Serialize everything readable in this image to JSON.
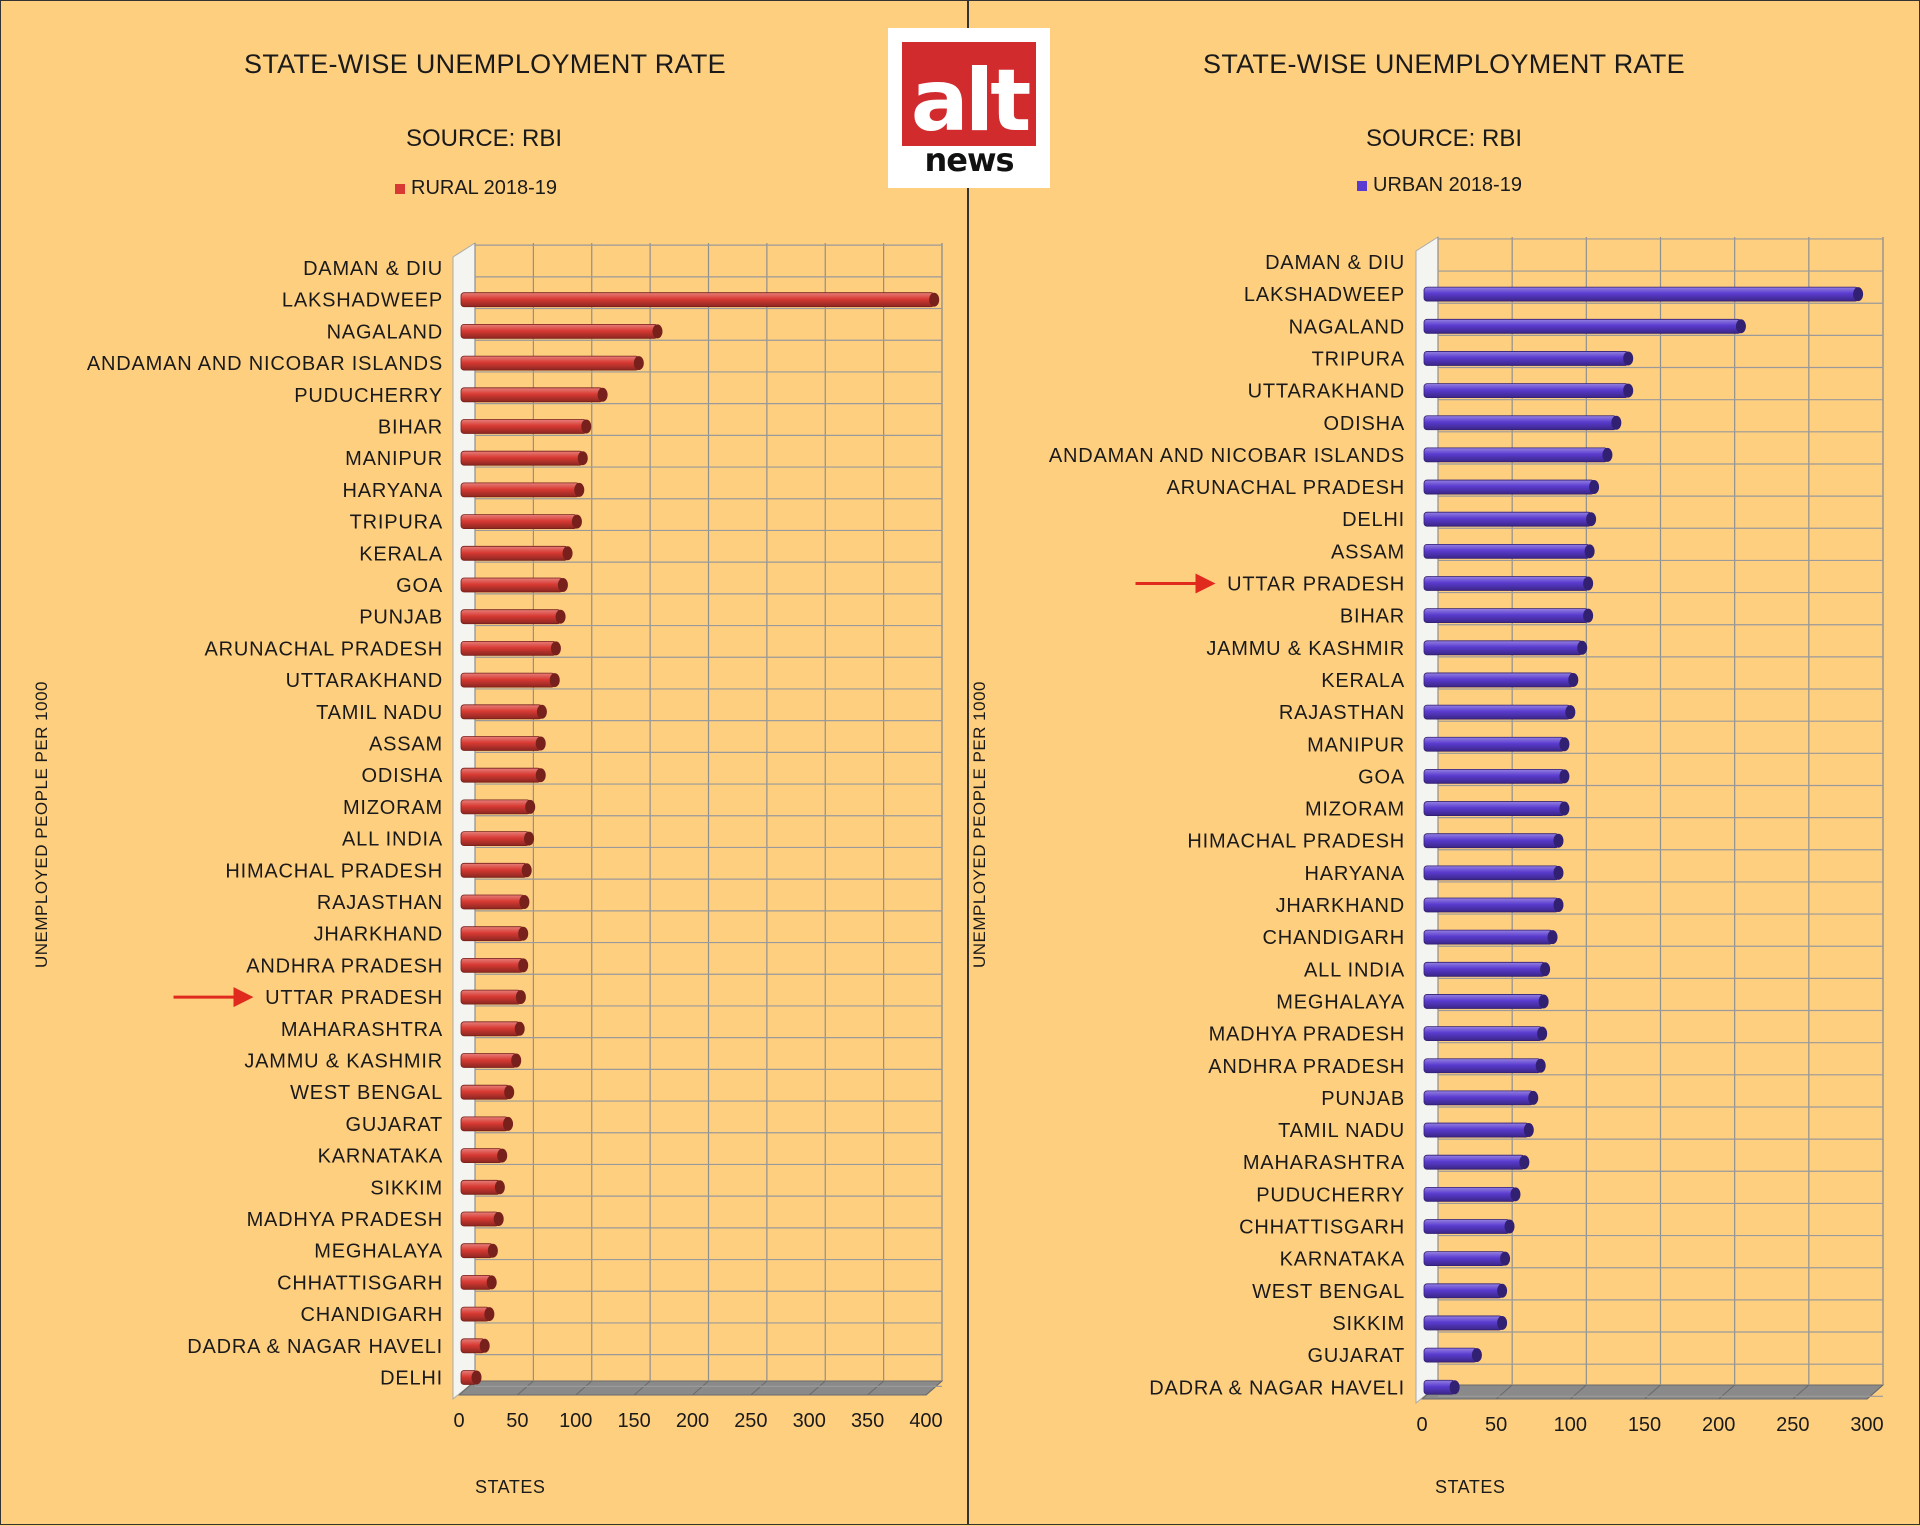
{
  "logo": {
    "top": "alt",
    "bottom": "news"
  },
  "left": {
    "title": "STATE-WISE UNEMPLOYMENT RATE",
    "subtitle": "SOURCE: RBI",
    "legend": "RURAL 2018-19",
    "ylabel": "UNEMPLOYED PEOPLE PER 1000",
    "xlabel": "STATES"
  },
  "right": {
    "title": "STATE-WISE UNEMPLOYMENT RATE",
    "subtitle": "SOURCE: RBI",
    "legend": "URBAN 2018-19",
    "ylabel": "UNEMPLOYED PEOPLE PER 1000",
    "xlabel": "STATES"
  },
  "chart_data": [
    {
      "type": "bar",
      "orientation": "horizontal",
      "title": "STATE-WISE UNEMPLOYMENT RATE",
      "subtitle": "SOURCE: RBI",
      "ylabel": "UNEMPLOYED PEOPLE PER 1000",
      "xlabel": "STATES",
      "xlim": [
        0,
        400
      ],
      "xticks": [
        0,
        50,
        100,
        150,
        200,
        250,
        300,
        350,
        400
      ],
      "grid": true,
      "legend_position": "top-center",
      "color": "#d83a33",
      "highlight": "UTTAR PRADESH",
      "series": [
        {
          "name": "RURAL 2018-19"
        }
      ],
      "categories": [
        "DAMAN & DIU",
        "LAKSHADWEEP",
        "NAGALAND",
        "ANDAMAN AND NICOBAR ISLANDS",
        "PUDUCHERRY",
        "BIHAR",
        "MANIPUR",
        "HARYANA",
        "TRIPURA",
        "KERALA",
        "GOA",
        "PUNJAB",
        "ARUNACHAL PRADESH",
        "UTTARAKHAND",
        "TAMIL NADU",
        "ASSAM",
        "ODISHA",
        "MIZORAM",
        "ALL INDIA",
        "HIMACHAL PRADESH",
        "RAJASTHAN",
        "JHARKHAND",
        "ANDHRA PRADESH",
        "UTTAR PRADESH",
        "MAHARASHTRA",
        "JAMMU & KASHMIR",
        "WEST BENGAL",
        "GUJARAT",
        "KARNATAKA",
        "SIKKIM",
        "MADHYA PRADESH",
        "MEGHALAYA",
        "CHHATTISGARH",
        "CHANDIGARH",
        "DADRA & NAGAR HAVELI",
        "DELHI"
      ],
      "values": [
        0,
        407,
        170,
        154,
        123,
        109,
        106,
        103,
        101,
        93,
        89,
        87,
        83,
        82,
        71,
        70,
        70,
        61,
        60,
        58,
        56,
        55,
        55,
        53,
        52,
        49,
        43,
        42,
        37,
        35,
        34,
        29,
        28,
        26,
        22,
        15
      ]
    },
    {
      "type": "bar",
      "orientation": "horizontal",
      "title": "STATE-WISE UNEMPLOYMENT RATE",
      "subtitle": "SOURCE: RBI",
      "ylabel": "UNEMPLOYED PEOPLE PER 1000",
      "xlabel": "STATES",
      "xlim": [
        0,
        300
      ],
      "xticks": [
        0,
        50,
        100,
        150,
        200,
        250,
        300
      ],
      "grid": true,
      "legend_position": "top-center",
      "color": "#5a3bcf",
      "highlight": "UTTAR PRADESH",
      "series": [
        {
          "name": "URBAN 2018-19"
        }
      ],
      "categories": [
        "DAMAN & DIU",
        "LAKSHADWEEP",
        "NAGALAND",
        "TRIPURA",
        "UTTARAKHAND",
        "ODISHA",
        "ANDAMAN AND NICOBAR ISLANDS",
        "ARUNACHAL PRADESH",
        "DELHI",
        "ASSAM",
        "UTTAR PRADESH",
        "BIHAR",
        "JAMMU & KASHMIR",
        "KERALA",
        "RAJASTHAN",
        "MANIPUR",
        "GOA",
        "MIZORAM",
        "HIMACHAL PRADESH",
        "HARYANA",
        "JHARKHAND",
        "CHANDIGARH",
        "ALL INDIA",
        "MEGHALAYA",
        "MADHYA PRADESH",
        "ANDHRA PRADESH",
        "PUNJAB",
        "TAMIL NADU",
        "MAHARASHTRA",
        "PUDUCHERRY",
        "CHHATTISGARH",
        "KARNATAKA",
        "WEST BENGAL",
        "SIKKIM",
        "GUJARAT",
        "DADRA & NAGAR HAVELI"
      ],
      "values": [
        0,
        294,
        215,
        139,
        139,
        131,
        125,
        116,
        114,
        113,
        112,
        112,
        108,
        102,
        100,
        96,
        96,
        96,
        92,
        92,
        92,
        88,
        83,
        82,
        81,
        80,
        75,
        72,
        69,
        63,
        59,
        56,
        54,
        54,
        37,
        22
      ]
    }
  ]
}
